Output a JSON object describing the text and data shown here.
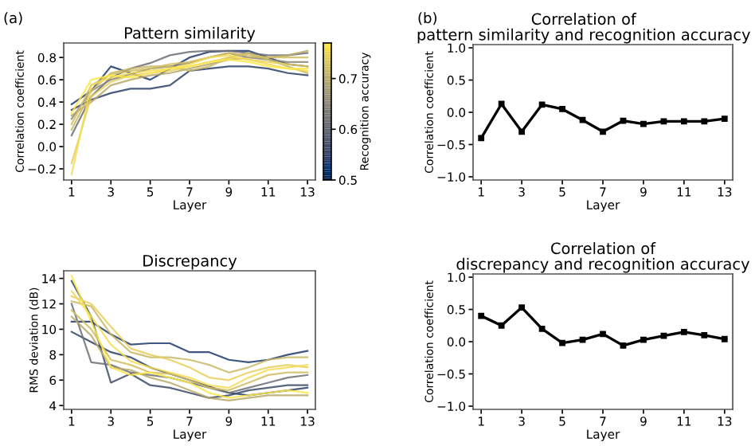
{
  "chart_data": [
    {
      "type": "line",
      "title": "Pattern similarity",
      "xlabel": "Layer",
      "ylabel": "Correlation coefficient",
      "clabel": "Recognition accuracy",
      "annotations": [
        "(a)"
      ],
      "x": [
        1,
        2,
        3,
        4,
        5,
        6,
        7,
        8,
        9,
        10,
        11,
        12,
        13
      ],
      "xlim": [
        0.6,
        13.4
      ],
      "xticks": [
        1,
        3,
        5,
        7,
        9,
        11,
        13
      ],
      "ylim": [
        -0.3,
        0.93
      ],
      "yticks": [
        {
          "value": -0.2,
          "label": "−0.2"
        },
        {
          "value": 0,
          "label": "0.0"
        },
        {
          "value": 0.2,
          "label": "0.2"
        },
        {
          "value": 0.4,
          "label": "0.4"
        },
        {
          "value": 0.6,
          "label": "0.6"
        },
        {
          "value": 0.8,
          "label": "0.8"
        }
      ],
      "clim": [
        0.5,
        0.77
      ],
      "cticks": [
        0.5,
        0.6,
        0.7
      ],
      "grid": false,
      "legend": false,
      "marker": "none",
      "line_style": "solid",
      "series": [
        {
          "color": "#1f3a6b",
          "values": [
            0.38,
            0.5,
            0.72,
            0.66,
            0.6,
            0.7,
            0.8,
            0.85,
            0.86,
            0.86,
            0.8,
            0.74,
            0.72
          ]
        },
        {
          "color": "#2b3f66",
          "values": [
            0.33,
            0.42,
            0.48,
            0.52,
            0.52,
            0.55,
            0.68,
            0.7,
            0.72,
            0.72,
            0.7,
            0.66,
            0.64
          ]
        },
        {
          "color": "#6b6e74",
          "values": [
            0.1,
            0.45,
            0.62,
            0.7,
            0.75,
            0.82,
            0.85,
            0.86,
            0.86,
            0.84,
            0.82,
            0.82,
            0.84
          ]
        },
        {
          "color": "#8a8778",
          "values": [
            0.25,
            0.5,
            0.6,
            0.65,
            0.7,
            0.72,
            0.75,
            0.8,
            0.84,
            0.8,
            0.78,
            0.76,
            0.76
          ]
        },
        {
          "color": "#b9a96a",
          "values": [
            0.28,
            0.4,
            0.55,
            0.6,
            0.64,
            0.66,
            0.7,
            0.74,
            0.78,
            0.8,
            0.8,
            0.82,
            0.86
          ]
        },
        {
          "color": "#c9b865",
          "values": [
            0.15,
            0.5,
            0.66,
            0.7,
            0.72,
            0.72,
            0.68,
            0.72,
            0.8,
            0.84,
            0.78,
            0.72,
            0.66
          ]
        },
        {
          "color": "#d2bd60",
          "values": [
            0.2,
            0.55,
            0.65,
            0.68,
            0.7,
            0.74,
            0.76,
            0.8,
            0.84,
            0.82,
            0.8,
            0.8,
            0.8
          ]
        },
        {
          "color": "#e8cf5a",
          "values": [
            -0.15,
            0.45,
            0.58,
            0.64,
            0.66,
            0.68,
            0.72,
            0.76,
            0.8,
            0.78,
            0.76,
            0.74,
            0.72
          ]
        },
        {
          "color": "#f5dc55",
          "values": [
            -0.25,
            0.55,
            0.62,
            0.66,
            0.68,
            0.7,
            0.74,
            0.8,
            0.82,
            0.78,
            0.74,
            0.7,
            0.68
          ]
        },
        {
          "color": "#fde848",
          "values": [
            0.3,
            0.6,
            0.64,
            0.62,
            0.66,
            0.7,
            0.72,
            0.76,
            0.78,
            0.76,
            0.72,
            0.7,
            0.7
          ]
        }
      ]
    },
    {
      "type": "line",
      "title": "Correlation of\npattern similarity and recognition accuracy",
      "xlabel": "Layer",
      "ylabel": "Correlation coefficient",
      "annotations": [
        "(b)"
      ],
      "x": [
        1,
        2,
        3,
        4,
        5,
        6,
        7,
        8,
        9,
        10,
        11,
        12,
        13
      ],
      "xlim": [
        0.6,
        13.4
      ],
      "xticks": [
        1,
        3,
        5,
        7,
        9,
        11,
        13
      ],
      "ylim": [
        -1.05,
        1.05
      ],
      "yticks": [
        {
          "value": -1,
          "label": "−1.0"
        },
        {
          "value": -0.5,
          "label": "−0.5"
        },
        {
          "value": 0,
          "label": "0.0"
        },
        {
          "value": 0.5,
          "label": "0.5"
        },
        {
          "value": 1,
          "label": "1.0"
        }
      ],
      "grid": false,
      "legend": false,
      "marker": "square",
      "line_style": "solid",
      "series": [
        {
          "color": "#000000",
          "values": [
            -0.4,
            0.13,
            -0.3,
            0.12,
            0.05,
            -0.12,
            -0.3,
            -0.13,
            -0.18,
            -0.14,
            -0.14,
            -0.14,
            -0.1
          ]
        }
      ]
    },
    {
      "type": "line",
      "title": "Discrepancy",
      "xlabel": "Layer",
      "ylabel": "RMS deviation (dB)",
      "x": [
        1,
        2,
        3,
        4,
        5,
        6,
        7,
        8,
        9,
        10,
        11,
        12,
        13
      ],
      "xlim": [
        0.6,
        13.4
      ],
      "xticks": [
        1,
        3,
        5,
        7,
        9,
        11,
        13
      ],
      "ylim": [
        3.7,
        14.6
      ],
      "yticks": [
        4,
        6,
        8,
        10,
        12,
        14
      ],
      "grid": false,
      "legend": false,
      "marker": "none",
      "line_style": "solid",
      "series": [
        {
          "color": "#1f3a6b",
          "values": [
            10.6,
            10.6,
            9.6,
            8.8,
            8.9,
            8.9,
            8.2,
            8.2,
            7.6,
            7.4,
            7.6,
            8.0,
            8.3
          ]
        },
        {
          "color": "#2b3f66",
          "values": [
            9.8,
            9.0,
            8.2,
            7.8,
            7.0,
            6.5,
            6.0,
            5.5,
            5.0,
            4.8,
            5.0,
            5.2,
            5.4
          ]
        },
        {
          "color": "#3c4a66",
          "values": [
            13.8,
            11.0,
            5.8,
            6.5,
            5.6,
            5.4,
            5.0,
            4.6,
            4.8,
            5.2,
            5.4,
            5.6,
            5.6
          ]
        },
        {
          "color": "#6b6e74",
          "values": [
            12.0,
            7.4,
            7.2,
            6.6,
            6.4,
            6.2,
            5.8,
            5.4,
            5.0,
            5.4,
            5.8,
            6.2,
            6.4
          ]
        },
        {
          "color": "#b9a96a",
          "values": [
            11.0,
            9.5,
            7.0,
            6.8,
            6.2,
            5.8,
            5.2,
            4.6,
            4.4,
            4.6,
            4.8,
            4.8,
            4.8
          ]
        },
        {
          "color": "#c9b865",
          "values": [
            12.2,
            11.8,
            9.6,
            8.2,
            7.8,
            7.8,
            7.6,
            7.2,
            6.6,
            7.0,
            7.6,
            7.8,
            7.8
          ]
        },
        {
          "color": "#d2bd60",
          "values": [
            11.5,
            10.0,
            7.6,
            7.2,
            6.6,
            6.5,
            6.0,
            5.4,
            5.2,
            5.8,
            6.4,
            6.6,
            6.6
          ]
        },
        {
          "color": "#e8cf5a",
          "values": [
            12.6,
            12.0,
            10.2,
            8.5,
            8.0,
            7.6,
            7.0,
            6.2,
            6.0,
            6.6,
            7.0,
            7.2,
            7.0
          ]
        },
        {
          "color": "#f5dc55",
          "values": [
            13.0,
            11.0,
            8.8,
            7.5,
            7.0,
            6.6,
            6.2,
            5.6,
            5.4,
            6.2,
            6.8,
            7.0,
            7.2
          ]
        },
        {
          "color": "#fde848",
          "values": [
            14.2,
            10.6,
            7.0,
            6.4,
            6.6,
            6.2,
            5.8,
            5.0,
            4.6,
            4.8,
            5.0,
            5.2,
            5.0
          ]
        }
      ]
    },
    {
      "type": "line",
      "title": "Correlation of\ndiscrepancy and recognition accuracy",
      "xlabel": "Layer",
      "ylabel": "Correlation coefficient",
      "x": [
        1,
        2,
        3,
        4,
        5,
        6,
        7,
        8,
        9,
        10,
        11,
        12,
        13
      ],
      "xlim": [
        0.6,
        13.4
      ],
      "xticks": [
        1,
        3,
        5,
        7,
        9,
        11,
        13
      ],
      "ylim": [
        -1.05,
        1.05
      ],
      "yticks": [
        {
          "value": -1,
          "label": "−1.0"
        },
        {
          "value": -0.5,
          "label": "−0.5"
        },
        {
          "value": 0,
          "label": "0.0"
        },
        {
          "value": 0.5,
          "label": "0.5"
        },
        {
          "value": 1,
          "label": "1.0"
        }
      ],
      "grid": false,
      "legend": false,
      "marker": "square",
      "line_style": "solid",
      "series": [
        {
          "color": "#000000",
          "values": [
            0.4,
            0.25,
            0.53,
            0.2,
            -0.02,
            0.03,
            0.12,
            -0.06,
            0.03,
            0.09,
            0.15,
            0.1,
            0.04
          ]
        }
      ]
    }
  ]
}
